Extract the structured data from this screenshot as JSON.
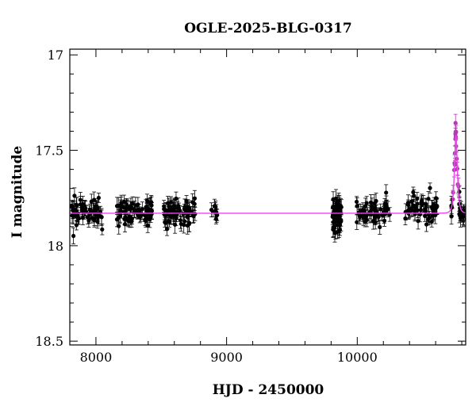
{
  "chart_data": {
    "type": "scatter",
    "title": "OGLE-2025-BLG-0317",
    "xlabel": "HJD - 2450000",
    "ylabel": "I magnitude",
    "xlim": [
      7800,
      10830
    ],
    "ylim": [
      18.52,
      16.97
    ],
    "y_inverted": true,
    "xticks": [
      8000,
      9000,
      10000
    ],
    "xtick_labels": [
      "8000",
      "9000",
      "10000"
    ],
    "yticks": [
      17,
      17.5,
      18,
      18.5
    ],
    "ytick_labels": [
      "17",
      "17.5",
      "18",
      "18.5"
    ],
    "grid": false,
    "legend": "none",
    "colors": {
      "points": "#000000",
      "model": "#ee44ee",
      "peak_points": "#b03cb0"
    },
    "baseline_magnitude": 17.83,
    "series": [
      {
        "kind": "observations",
        "seasons": [
          {
            "x_range": [
              7810,
              8050
            ],
            "y_center": 17.83,
            "y_spread": 0.07,
            "n": 60,
            "error": 0.035
          },
          {
            "x_range": [
              8160,
              8430
            ],
            "y_center": 17.82,
            "y_spread": 0.06,
            "n": 70,
            "error": 0.035
          },
          {
            "x_range": [
              8520,
              8760
            ],
            "y_center": 17.83,
            "y_spread": 0.06,
            "n": 65,
            "error": 0.035
          },
          {
            "x_range": [
              8880,
              8930
            ],
            "y_center": 17.82,
            "y_spread": 0.04,
            "n": 10,
            "error": 0.035
          },
          {
            "x_range": [
              9810,
              9880
            ],
            "y_center": 17.85,
            "y_spread": 0.1,
            "n": 60,
            "error": 0.04
          },
          {
            "x_range": [
              9990,
              10250
            ],
            "y_center": 17.82,
            "y_spread": 0.06,
            "n": 55,
            "error": 0.035
          },
          {
            "x_range": [
              10360,
              10620
            ],
            "y_center": 17.81,
            "y_spread": 0.06,
            "n": 55,
            "error": 0.035
          }
        ],
        "event": {
          "x_range": [
            10720,
            10830
          ],
          "t0": 10755,
          "tE": 14,
          "peak_magnitude": 17.4
        }
      },
      {
        "kind": "model",
        "baseline": 17.83,
        "t0": 10755,
        "tE": 14,
        "peak_magnitude": 17.42
      }
    ]
  }
}
